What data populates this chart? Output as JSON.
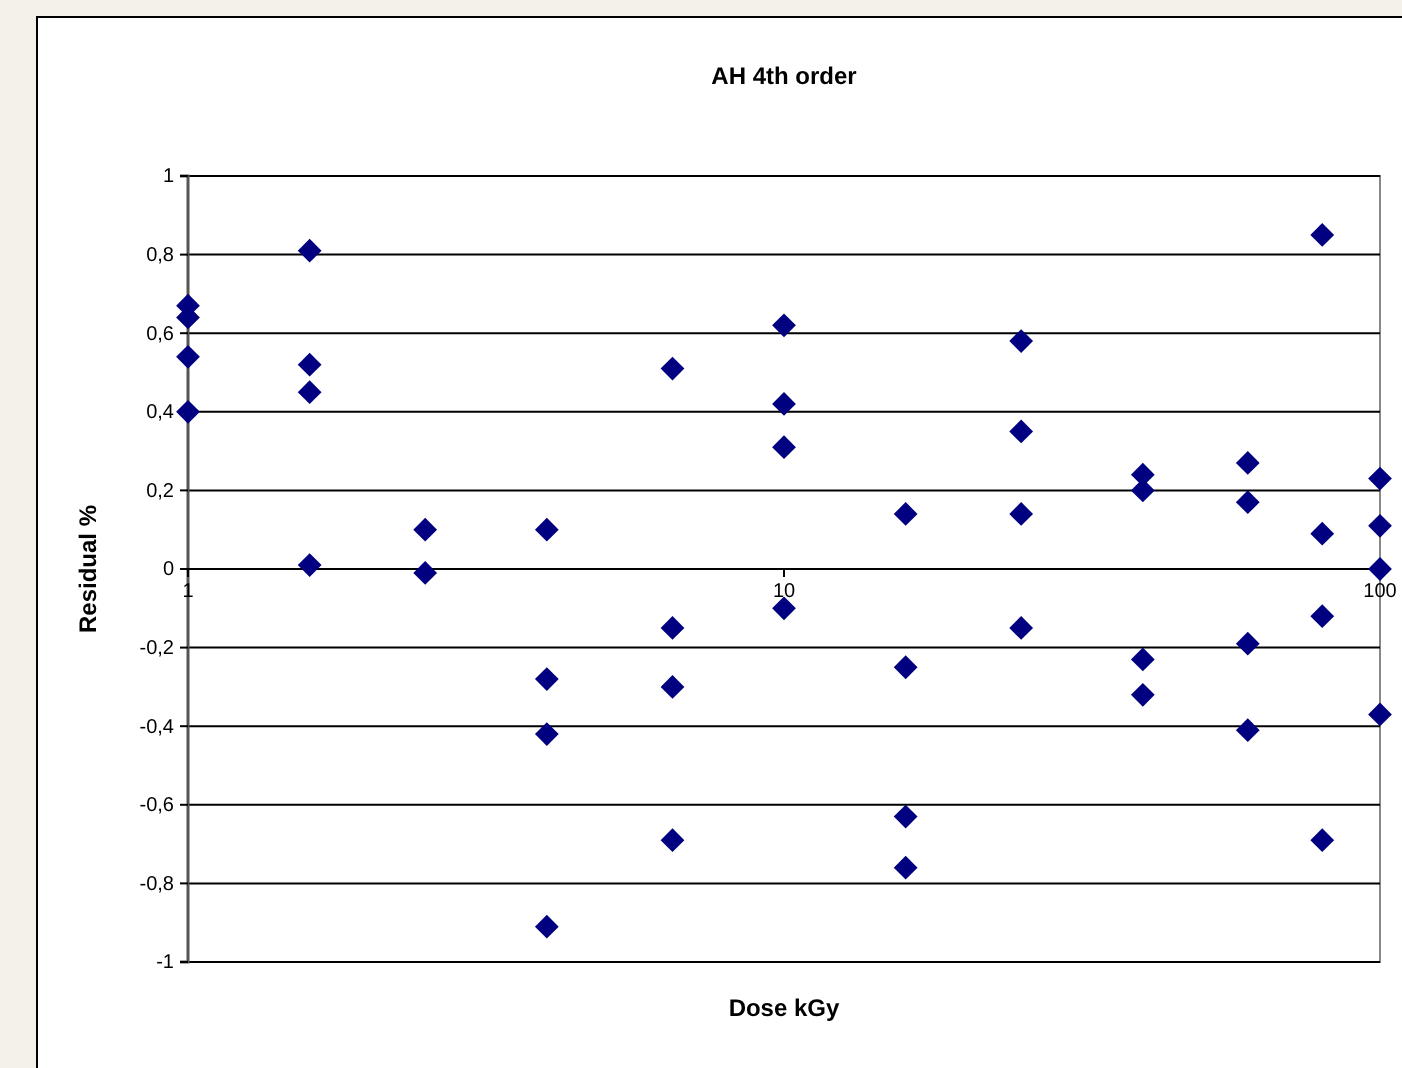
{
  "chart_data": {
    "type": "scatter",
    "title": "AH 4th order",
    "xlabel": "Dose kGy",
    "ylabel": "Residual %",
    "log": "x",
    "grid": "y",
    "legend": false,
    "marker": "diamond",
    "xlim": [
      1,
      100
    ],
    "xticks": [
      1,
      10,
      100
    ],
    "ylim": [
      -1,
      1
    ],
    "yticks": [
      {
        "value": -1,
        "label": "-1"
      },
      {
        "value": -0.8,
        "label": "-0,8"
      },
      {
        "value": -0.6,
        "label": "-0,6"
      },
      {
        "value": -0.4,
        "label": "-0,4"
      },
      {
        "value": -0.2,
        "label": "-0,2"
      },
      {
        "value": 0,
        "label": "0"
      },
      {
        "value": 0.2,
        "label": "0,2"
      },
      {
        "value": 0.4,
        "label": "0,4"
      },
      {
        "value": 0.6,
        "label": "0,6"
      },
      {
        "value": 0.8,
        "label": "0,8"
      },
      {
        "value": 1,
        "label": "1"
      }
    ],
    "series": [
      {
        "color": "#000080",
        "x": [
          1,
          1,
          1,
          1,
          1.6,
          1.6,
          1.6,
          1.6,
          2.5,
          2.5,
          4,
          4,
          4,
          4,
          6.5,
          6.5,
          6.5,
          6.5,
          10,
          10,
          10,
          10,
          16,
          16,
          16,
          16,
          25,
          25,
          25,
          25,
          40,
          40,
          40,
          40,
          60,
          60,
          60,
          60,
          80,
          80,
          80,
          80,
          100,
          100,
          100,
          100
        ],
        "values": [
          0.67,
          0.64,
          0.54,
          0.4,
          0.81,
          0.52,
          0.45,
          0.01,
          0.1,
          -0.01,
          0.1,
          -0.28,
          -0.42,
          -0.91,
          0.51,
          -0.15,
          -0.3,
          -0.69,
          0.62,
          0.42,
          0.31,
          -0.1,
          0.14,
          -0.25,
          -0.63,
          -0.76,
          0.58,
          0.35,
          0.14,
          -0.15,
          0.24,
          0.2,
          -0.23,
          -0.32,
          0.27,
          0.17,
          -0.19,
          -0.41,
          0.85,
          0.09,
          -0.12,
          -0.69,
          0.23,
          0.11,
          0,
          -0.37
        ]
      }
    ]
  }
}
